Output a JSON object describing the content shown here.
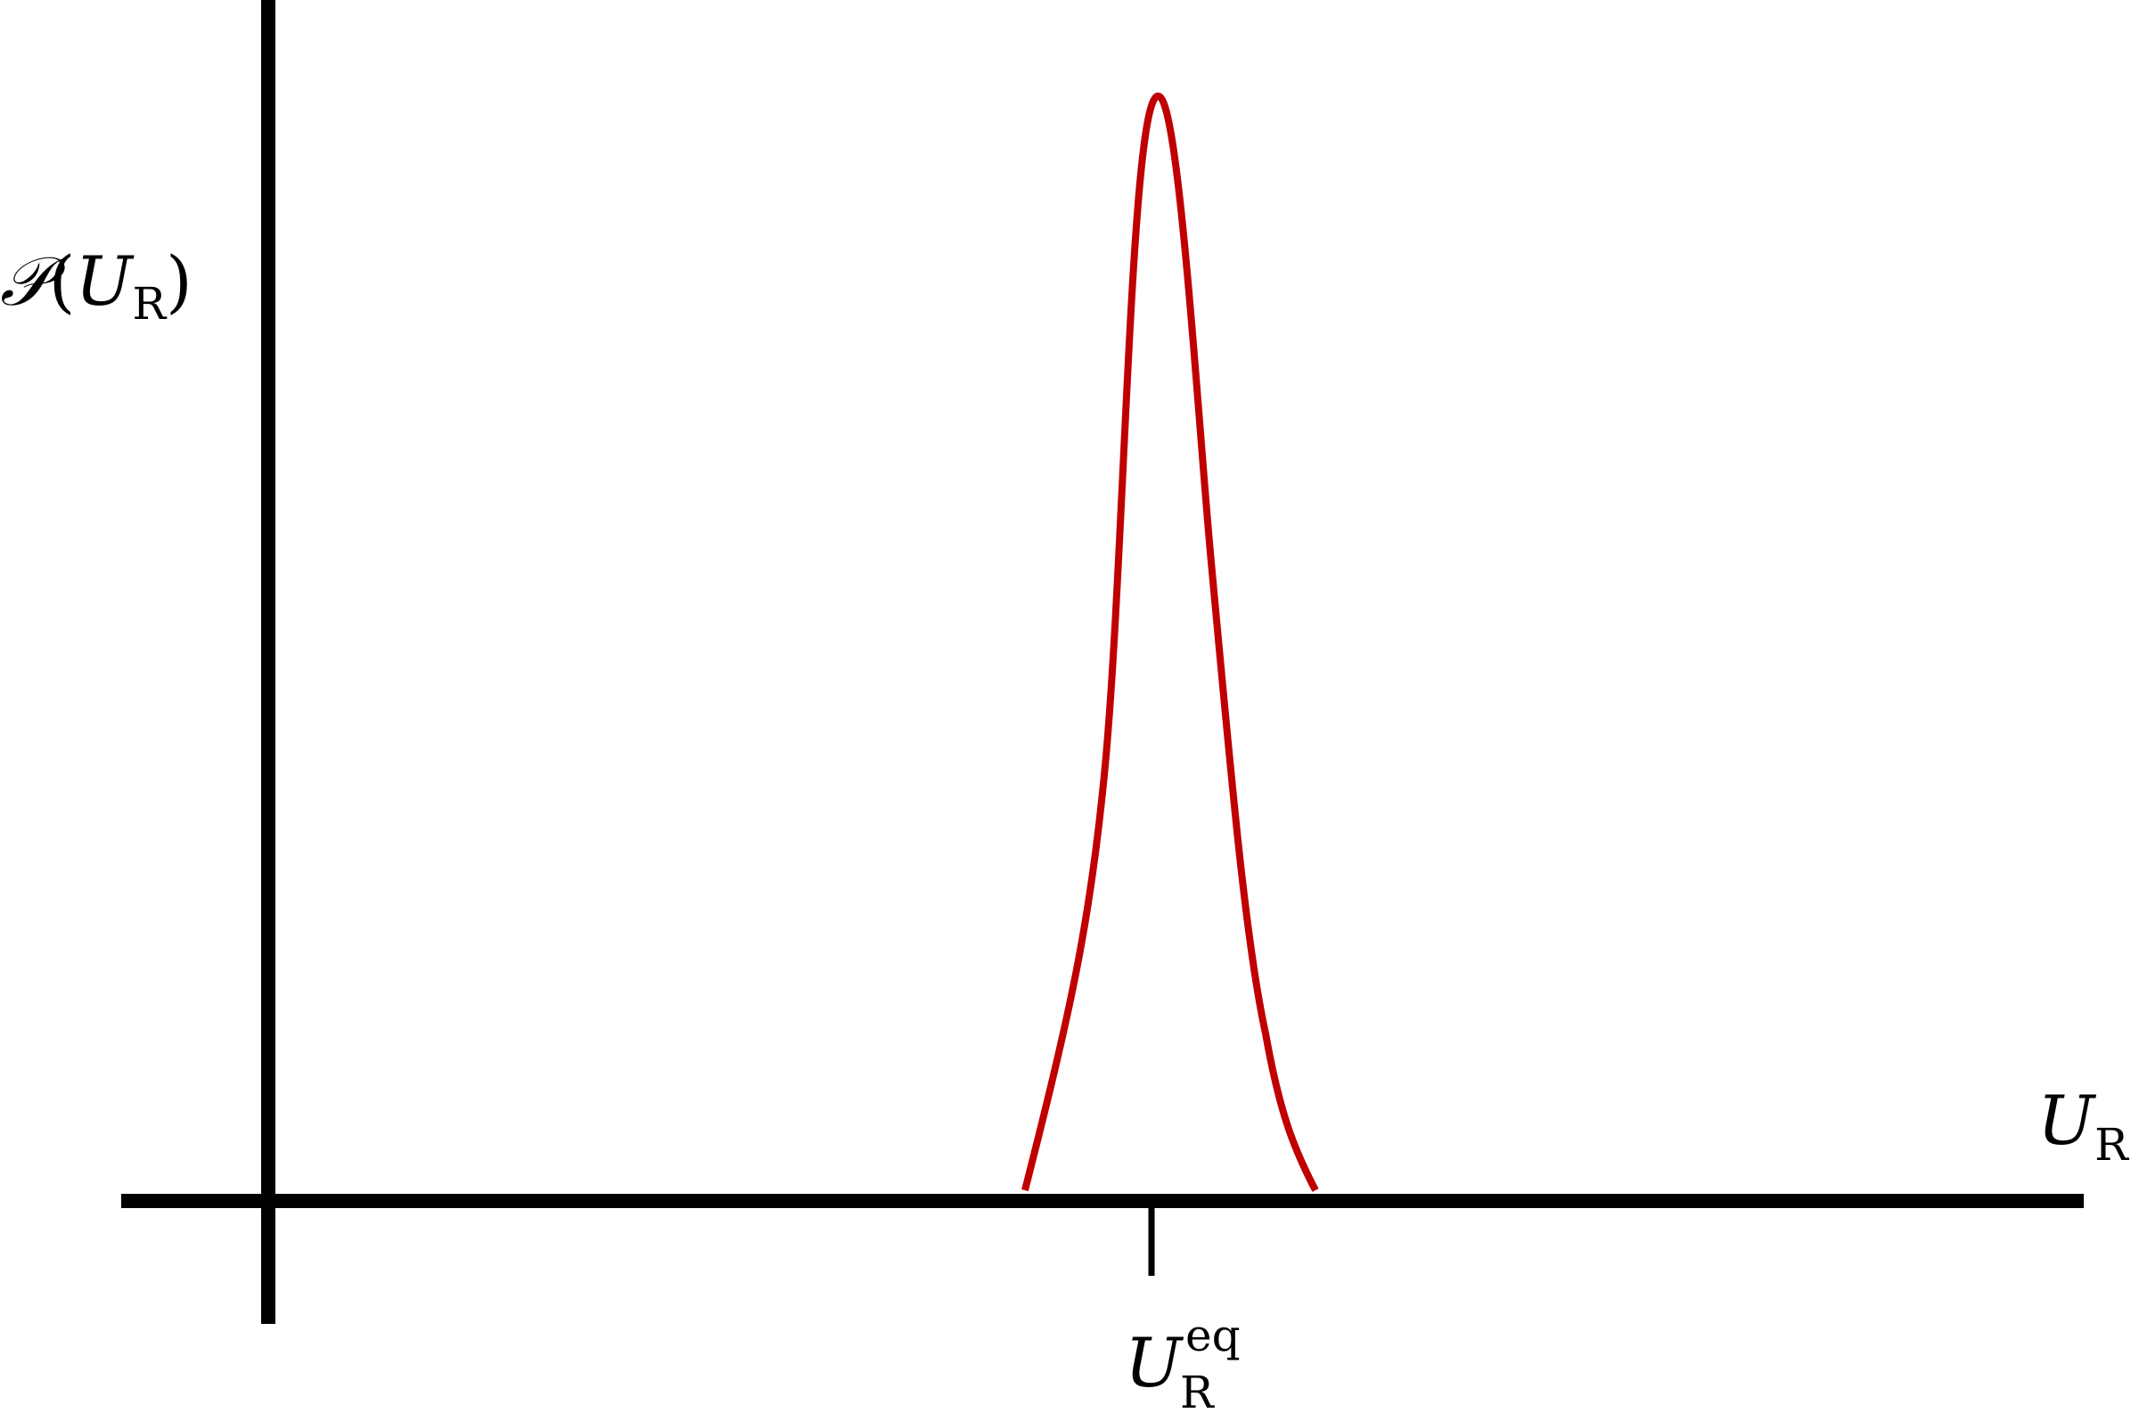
{
  "colors": {
    "axis": "#000000",
    "curve": "#c00000",
    "background": "#ffffff"
  },
  "y_axis_label": {
    "func": "𝒫",
    "open": "(",
    "var": "U",
    "sub": "R",
    "close": ")"
  },
  "x_axis_label": {
    "var": "U",
    "sub": "R"
  },
  "tick_label": {
    "var": "U",
    "sub": "R",
    "sup": "eq"
  }
}
